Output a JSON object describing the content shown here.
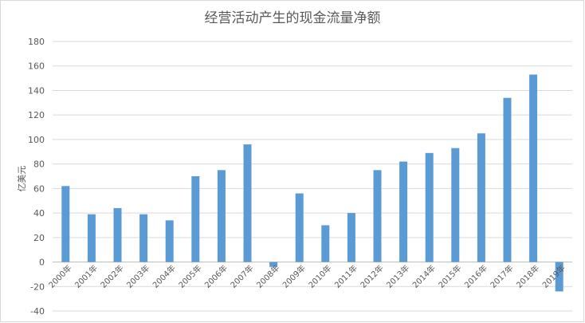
{
  "chart_data": {
    "type": "bar",
    "title": "经营活动产生的现金流量净额",
    "xlabel": "",
    "ylabel": "亿美元",
    "categories": [
      "2000年",
      "2001年",
      "2002年",
      "2003年",
      "2004年",
      "2005年",
      "2006年",
      "2007年",
      "2008年",
      "2009年",
      "2010年",
      "2011年",
      "2012年",
      "2013年",
      "2014年",
      "2015年",
      "2016年",
      "2017年",
      "2018年",
      "2019年"
    ],
    "values": [
      62,
      39,
      44,
      39,
      34,
      70,
      75,
      96,
      -4,
      56,
      30,
      40,
      75,
      82,
      89,
      93,
      105,
      134,
      153,
      -24
    ],
    "ylim": [
      -40,
      180
    ],
    "yticks": [
      -40,
      -20,
      0,
      20,
      40,
      60,
      80,
      100,
      120,
      140,
      160,
      180
    ],
    "grid": true,
    "legend": "none",
    "bar_color": "#5b9bd5",
    "grid_color": "#d9d9d9"
  }
}
